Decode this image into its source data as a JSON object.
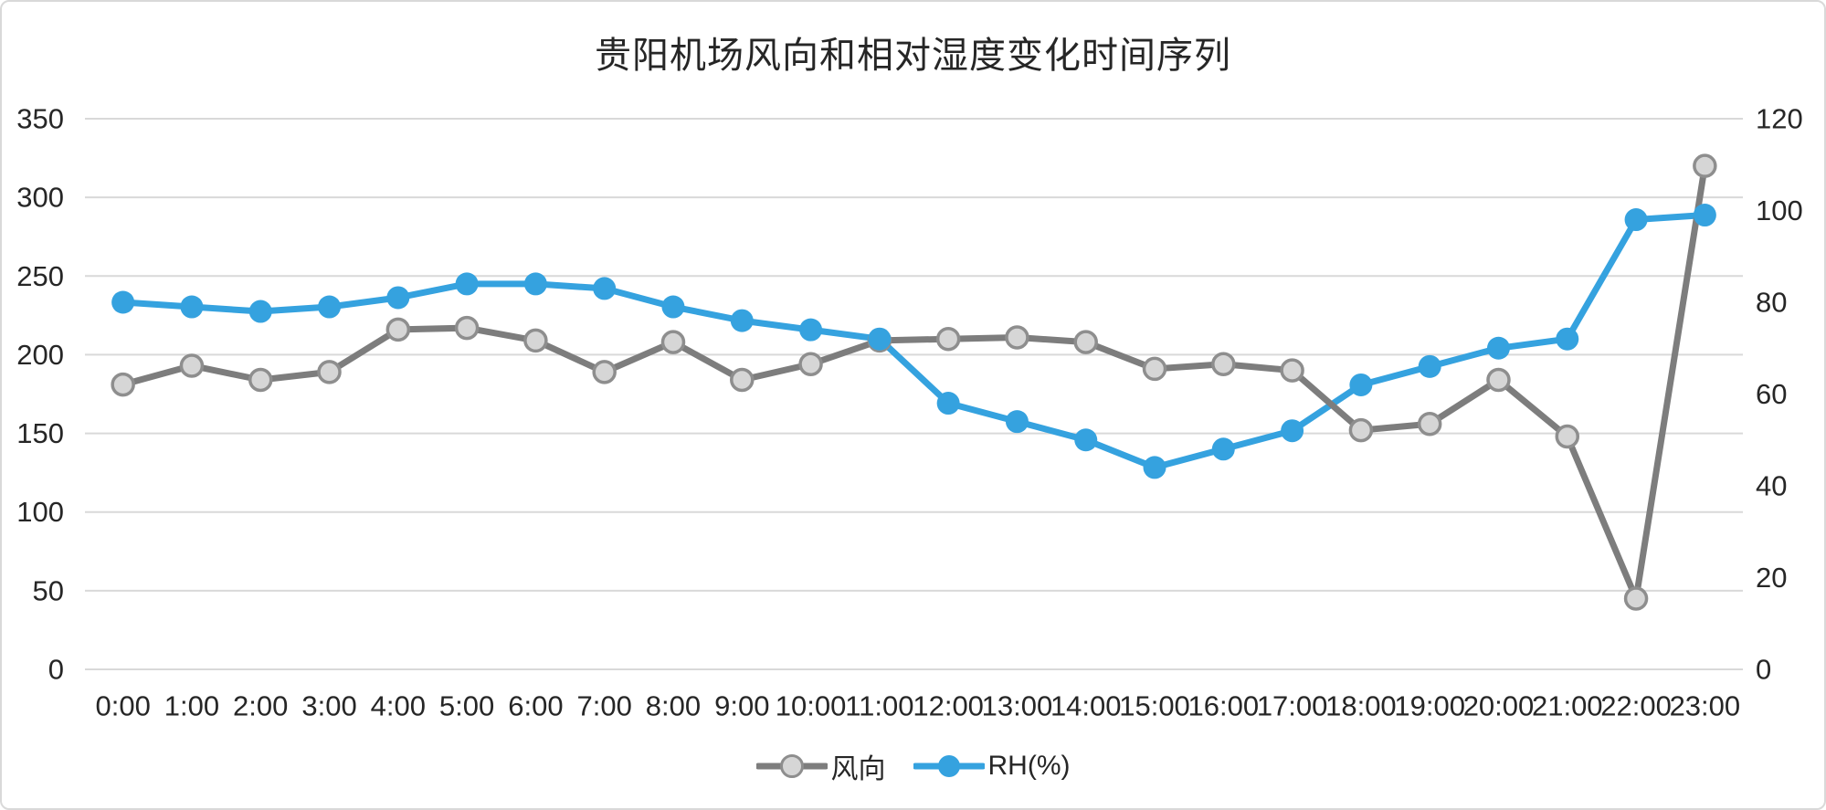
{
  "title": "贵阳机场风向和相对湿度变化时间序列",
  "colors": {
    "wind_line": "#7d7d7d",
    "wind_marker_fill": "#d6d6d6",
    "wind_marker_stroke": "#8e8e8e",
    "rh_line": "#35a2df",
    "rh_marker_fill": "#35a2df",
    "gridline": "#d9d9d9",
    "text": "#262626",
    "frame_border": "#d9d9d9",
    "background": "#ffffff"
  },
  "legend": {
    "wind_label": "风向",
    "rh_label": "RH(%)"
  },
  "chart_data": {
    "type": "line",
    "title": "贵阳机场风向和相对湿度变化时间序列",
    "categories": [
      "0:00",
      "1:00",
      "2:00",
      "3:00",
      "4:00",
      "5:00",
      "6:00",
      "7:00",
      "8:00",
      "9:00",
      "10:00",
      "11:00",
      "12:00",
      "13:00",
      "14:00",
      "15:00",
      "16:00",
      "17:00",
      "18:00",
      "19:00",
      "20:00",
      "21:00",
      "22:00",
      "23:00"
    ],
    "series": [
      {
        "name": "风向",
        "axis": "left",
        "values": [
          181,
          193,
          184,
          189,
          216,
          217,
          209,
          189,
          208,
          184,
          194,
          209,
          210,
          211,
          208,
          191,
          194,
          190,
          152,
          156,
          184,
          148,
          45,
          320
        ]
      },
      {
        "name": "RH(%)",
        "axis": "right",
        "values": [
          80,
          79,
          78,
          79,
          81,
          84,
          84,
          83,
          79,
          76,
          74,
          72,
          58,
          54,
          50,
          44,
          48,
          52,
          62,
          66,
          70,
          72,
          98,
          99
        ]
      }
    ],
    "axes": {
      "left": {
        "min": 0,
        "max": 350,
        "step": 50,
        "ticks": [
          0,
          50,
          100,
          150,
          200,
          250,
          300,
          350
        ]
      },
      "right": {
        "min": 0,
        "max": 120,
        "step": 20,
        "ticks": [
          0,
          20,
          40,
          60,
          80,
          100,
          120
        ]
      }
    },
    "grid": true,
    "legend_position": "bottom"
  }
}
